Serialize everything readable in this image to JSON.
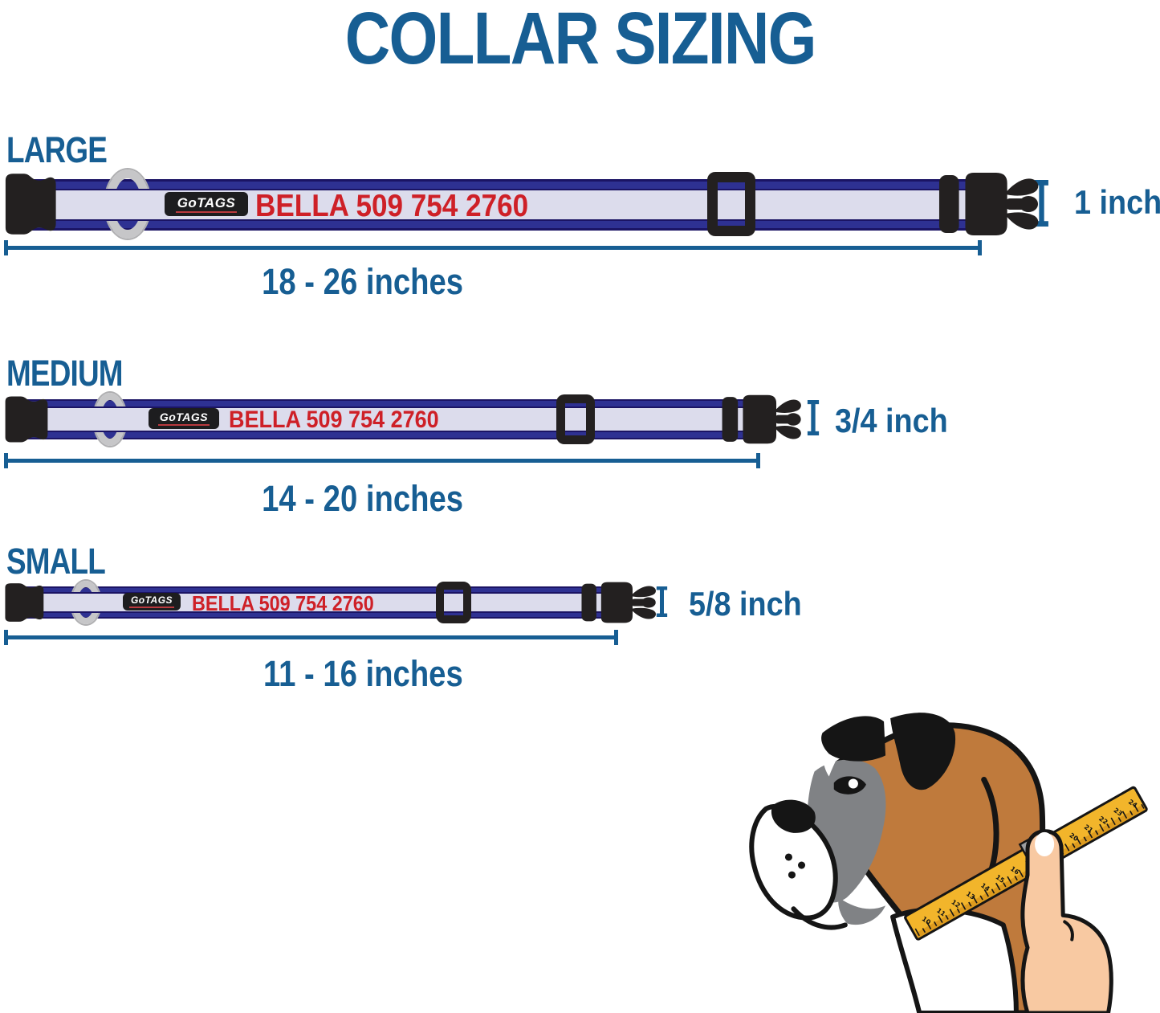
{
  "title": "COLLAR SIZING",
  "brand": "GoTAGS",
  "personalization": "BELLA 509 754 2760",
  "sizes": [
    {
      "label": "LARGE",
      "length_range": "18 - 26 inches",
      "width": "1 inch"
    },
    {
      "label": "MEDIUM",
      "length_range": "14 - 20 inches",
      "width": "3/4 inch"
    },
    {
      "label": "SMALL",
      "length_range": "11 - 16 inches",
      "width": "5/8 inch"
    }
  ],
  "illustration": {
    "tape_numbers": [
      "10",
      "11",
      "12",
      "13",
      "14",
      "15",
      "16",
      "17",
      "18",
      "19",
      "20",
      "21",
      "22",
      "23",
      "24"
    ]
  },
  "colors": {
    "heading_blue": "#175E93",
    "text_red": "#CE2027",
    "collar_navy": "#1B1464",
    "collar_blue": "#2E3192",
    "collar_center": "#DCDCEC",
    "buckle_black": "#232020",
    "ring_gray": "#C6C6C8",
    "tape_yellow": "#F2B52B"
  }
}
